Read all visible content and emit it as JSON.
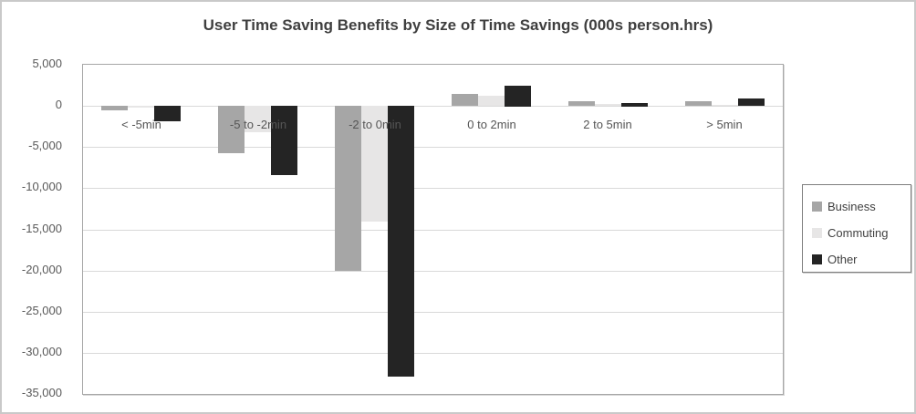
{
  "chart_data": {
    "type": "bar",
    "title": "User Time Saving Benefits by Size of Time Savings (000s person.hrs)",
    "categories": [
      "< -5min",
      "-5 to -2min",
      "-2 to 0min",
      "0 to 2min",
      "2 to 5min",
      "> 5min"
    ],
    "series": [
      {
        "name": "Business",
        "color": "#a6a6a6",
        "values": [
          -500,
          -5800,
          -20000,
          1400,
          600,
          600
        ]
      },
      {
        "name": "Commuting",
        "color": "#e7e6e6",
        "values": [
          -200,
          -3200,
          -14100,
          1200,
          200,
          100
        ]
      },
      {
        "name": "Other",
        "color": "#242424",
        "values": [
          -1900,
          -8400,
          -32900,
          2500,
          400,
          900
        ]
      }
    ],
    "ylim": [
      -35000,
      5000
    ],
    "yticks": [
      {
        "value": 5000,
        "label": "5,000"
      },
      {
        "value": 0,
        "label": "0"
      },
      {
        "value": -5000,
        "label": "-5,000"
      },
      {
        "value": -10000,
        "label": "-10,000"
      },
      {
        "value": -15000,
        "label": "-15,000"
      },
      {
        "value": -20000,
        "label": "-20,000"
      },
      {
        "value": -25000,
        "label": "-25,000"
      },
      {
        "value": -30000,
        "label": "-30,000"
      },
      {
        "value": -35000,
        "label": "-35,000"
      }
    ],
    "grid": true,
    "legend_position": "right",
    "xlabel": "",
    "ylabel": ""
  }
}
